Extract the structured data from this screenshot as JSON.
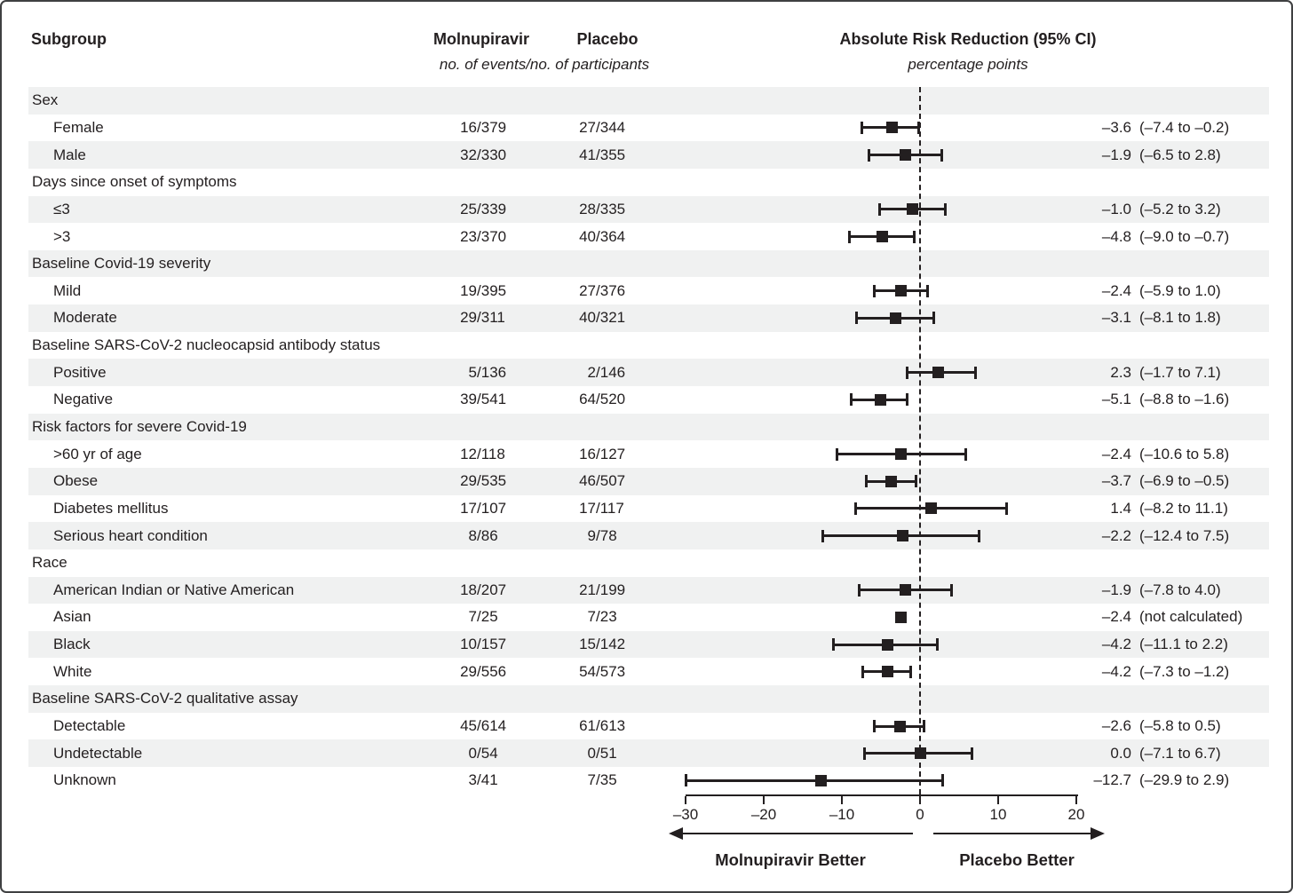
{
  "figure": {
    "header": {
      "subgroup": "Subgroup",
      "molnupiravir": "Molnupiravir",
      "placebo": "Placebo",
      "events_note": "no. of events/no. of participants",
      "arr_title": "Absolute Risk Reduction (95% CI)",
      "arr_units": "percentage points"
    },
    "footer": {
      "left_label": "Molnupiravir Better",
      "right_label": "Placebo Better"
    },
    "colors": {
      "ink": "#231f20",
      "stripe": "#f0f1f1",
      "border": "#3f4041"
    }
  },
  "chart_data": {
    "type": "forest",
    "title": "Absolute Risk Reduction (95% CI)",
    "xlabel": "percentage points",
    "xlim": [
      -30,
      20
    ],
    "zero_line": 0,
    "grid": false,
    "ticks": [
      {
        "v": -30,
        "label": "–30"
      },
      {
        "v": -20,
        "label": "–20"
      },
      {
        "v": -10,
        "label": "–10"
      },
      {
        "v": 0,
        "label": "0"
      },
      {
        "v": 10,
        "label": "10"
      },
      {
        "v": 20,
        "label": "20"
      }
    ],
    "rows": [
      {
        "kind": "section",
        "label": "Sex"
      },
      {
        "kind": "item",
        "label": "Female",
        "molnupiravir": "16/379",
        "placebo": "27/344",
        "est": -3.6,
        "lo": -7.4,
        "hi": -0.2,
        "arr": "–3.6",
        "ci": "(–7.4 to –0.2)"
      },
      {
        "kind": "item",
        "label": "Male",
        "molnupiravir": "32/330",
        "placebo": "41/355",
        "est": -1.9,
        "lo": -6.5,
        "hi": 2.8,
        "arr": "–1.9",
        "ci": "(–6.5 to 2.8)"
      },
      {
        "kind": "section",
        "label": "Days since onset of symptoms"
      },
      {
        "kind": "item",
        "label": "≤3",
        "molnupiravir": "25/339",
        "placebo": "28/335",
        "est": -1.0,
        "lo": -5.2,
        "hi": 3.2,
        "arr": "–1.0",
        "ci": "(–5.2 to 3.2)"
      },
      {
        "kind": "item",
        "label": ">3",
        "molnupiravir": "23/370",
        "placebo": "40/364",
        "est": -4.8,
        "lo": -9.0,
        "hi": -0.7,
        "arr": "–4.8",
        "ci": "(–9.0 to –0.7)"
      },
      {
        "kind": "section",
        "label": "Baseline Covid-19 severity"
      },
      {
        "kind": "item",
        "label": "Mild",
        "molnupiravir": "19/395",
        "placebo": "27/376",
        "est": -2.4,
        "lo": -5.9,
        "hi": 1.0,
        "arr": "–2.4",
        "ci": "(–5.9 to 1.0)"
      },
      {
        "kind": "item",
        "label": "Moderate",
        "molnupiravir": "29/311",
        "placebo": "40/321",
        "est": -3.1,
        "lo": -8.1,
        "hi": 1.8,
        "arr": "–3.1",
        "ci": "(–8.1 to 1.8)"
      },
      {
        "kind": "section",
        "label": "Baseline SARS-CoV-2 nucleocapsid antibody status"
      },
      {
        "kind": "item",
        "label": "Positive",
        "molnupiravir": "5/136",
        "placebo": "2/146",
        "est": 2.3,
        "lo": -1.7,
        "hi": 7.1,
        "arr": "2.3",
        "ci": "(–1.7 to 7.1)"
      },
      {
        "kind": "item",
        "label": "Negative",
        "molnupiravir": "39/541",
        "placebo": "64/520",
        "est": -5.1,
        "lo": -8.8,
        "hi": -1.6,
        "arr": "–5.1",
        "ci": "(–8.8 to –1.6)"
      },
      {
        "kind": "section",
        "label": "Risk factors for severe Covid-19"
      },
      {
        "kind": "item",
        "label": ">60 yr of age",
        "molnupiravir": "12/118",
        "placebo": "16/127",
        "est": -2.4,
        "lo": -10.6,
        "hi": 5.8,
        "arr": "–2.4",
        "ci": "(–10.6 to 5.8)"
      },
      {
        "kind": "item",
        "label": "Obese",
        "molnupiravir": "29/535",
        "placebo": "46/507",
        "est": -3.7,
        "lo": -6.9,
        "hi": -0.5,
        "arr": "–3.7",
        "ci": "(–6.9 to –0.5)"
      },
      {
        "kind": "item",
        "label": "Diabetes mellitus",
        "molnupiravir": "17/107",
        "placebo": "17/117",
        "est": 1.4,
        "lo": -8.2,
        "hi": 11.1,
        "arr": "1.4",
        "ci": "(–8.2 to 11.1)"
      },
      {
        "kind": "item",
        "label": "Serious heart condition",
        "molnupiravir": "8/86",
        "placebo": "9/78",
        "est": -2.2,
        "lo": -12.4,
        "hi": 7.5,
        "arr": "–2.2",
        "ci": "(–12.4 to 7.5)"
      },
      {
        "kind": "section",
        "label": "Race"
      },
      {
        "kind": "item",
        "label": "American Indian or Native American",
        "molnupiravir": "18/207",
        "placebo": "21/199",
        "est": -1.9,
        "lo": -7.8,
        "hi": 4.0,
        "arr": "–1.9",
        "ci": "(–7.8 to 4.0)"
      },
      {
        "kind": "item",
        "label": "Asian",
        "molnupiravir": "7/25",
        "placebo": "7/23",
        "est": -2.4,
        "lo": null,
        "hi": null,
        "arr": "–2.4",
        "ci": "(not calculated)"
      },
      {
        "kind": "item",
        "label": "Black",
        "molnupiravir": "10/157",
        "placebo": "15/142",
        "est": -4.2,
        "lo": -11.1,
        "hi": 2.2,
        "arr": "–4.2",
        "ci": "(–11.1 to 2.2)"
      },
      {
        "kind": "item",
        "label": "White",
        "molnupiravir": "29/556",
        "placebo": "54/573",
        "est": -4.2,
        "lo": -7.3,
        "hi": -1.2,
        "arr": "–4.2",
        "ci": "(–7.3 to –1.2)"
      },
      {
        "kind": "section",
        "label": "Baseline SARS-CoV-2 qualitative assay"
      },
      {
        "kind": "item",
        "label": "Detectable",
        "molnupiravir": "45/614",
        "placebo": "61/613",
        "est": -2.6,
        "lo": -5.8,
        "hi": 0.5,
        "arr": "–2.6",
        "ci": "(–5.8 to 0.5)"
      },
      {
        "kind": "item",
        "label": "Undetectable",
        "molnupiravir": "0/54",
        "placebo": "0/51",
        "est": 0.0,
        "lo": -7.1,
        "hi": 6.7,
        "arr": "0.0",
        "ci": "(–7.1 to 6.7)"
      },
      {
        "kind": "item",
        "label": "Unknown",
        "molnupiravir": "3/41",
        "placebo": "7/35",
        "est": -12.7,
        "lo": -29.9,
        "hi": 2.9,
        "arr": "–12.7",
        "ci": "(–29.9 to 2.9)"
      }
    ],
    "annotations": [
      "Molnupiravir Better (left of 0)",
      "Placebo Better (right of 0)"
    ]
  }
}
